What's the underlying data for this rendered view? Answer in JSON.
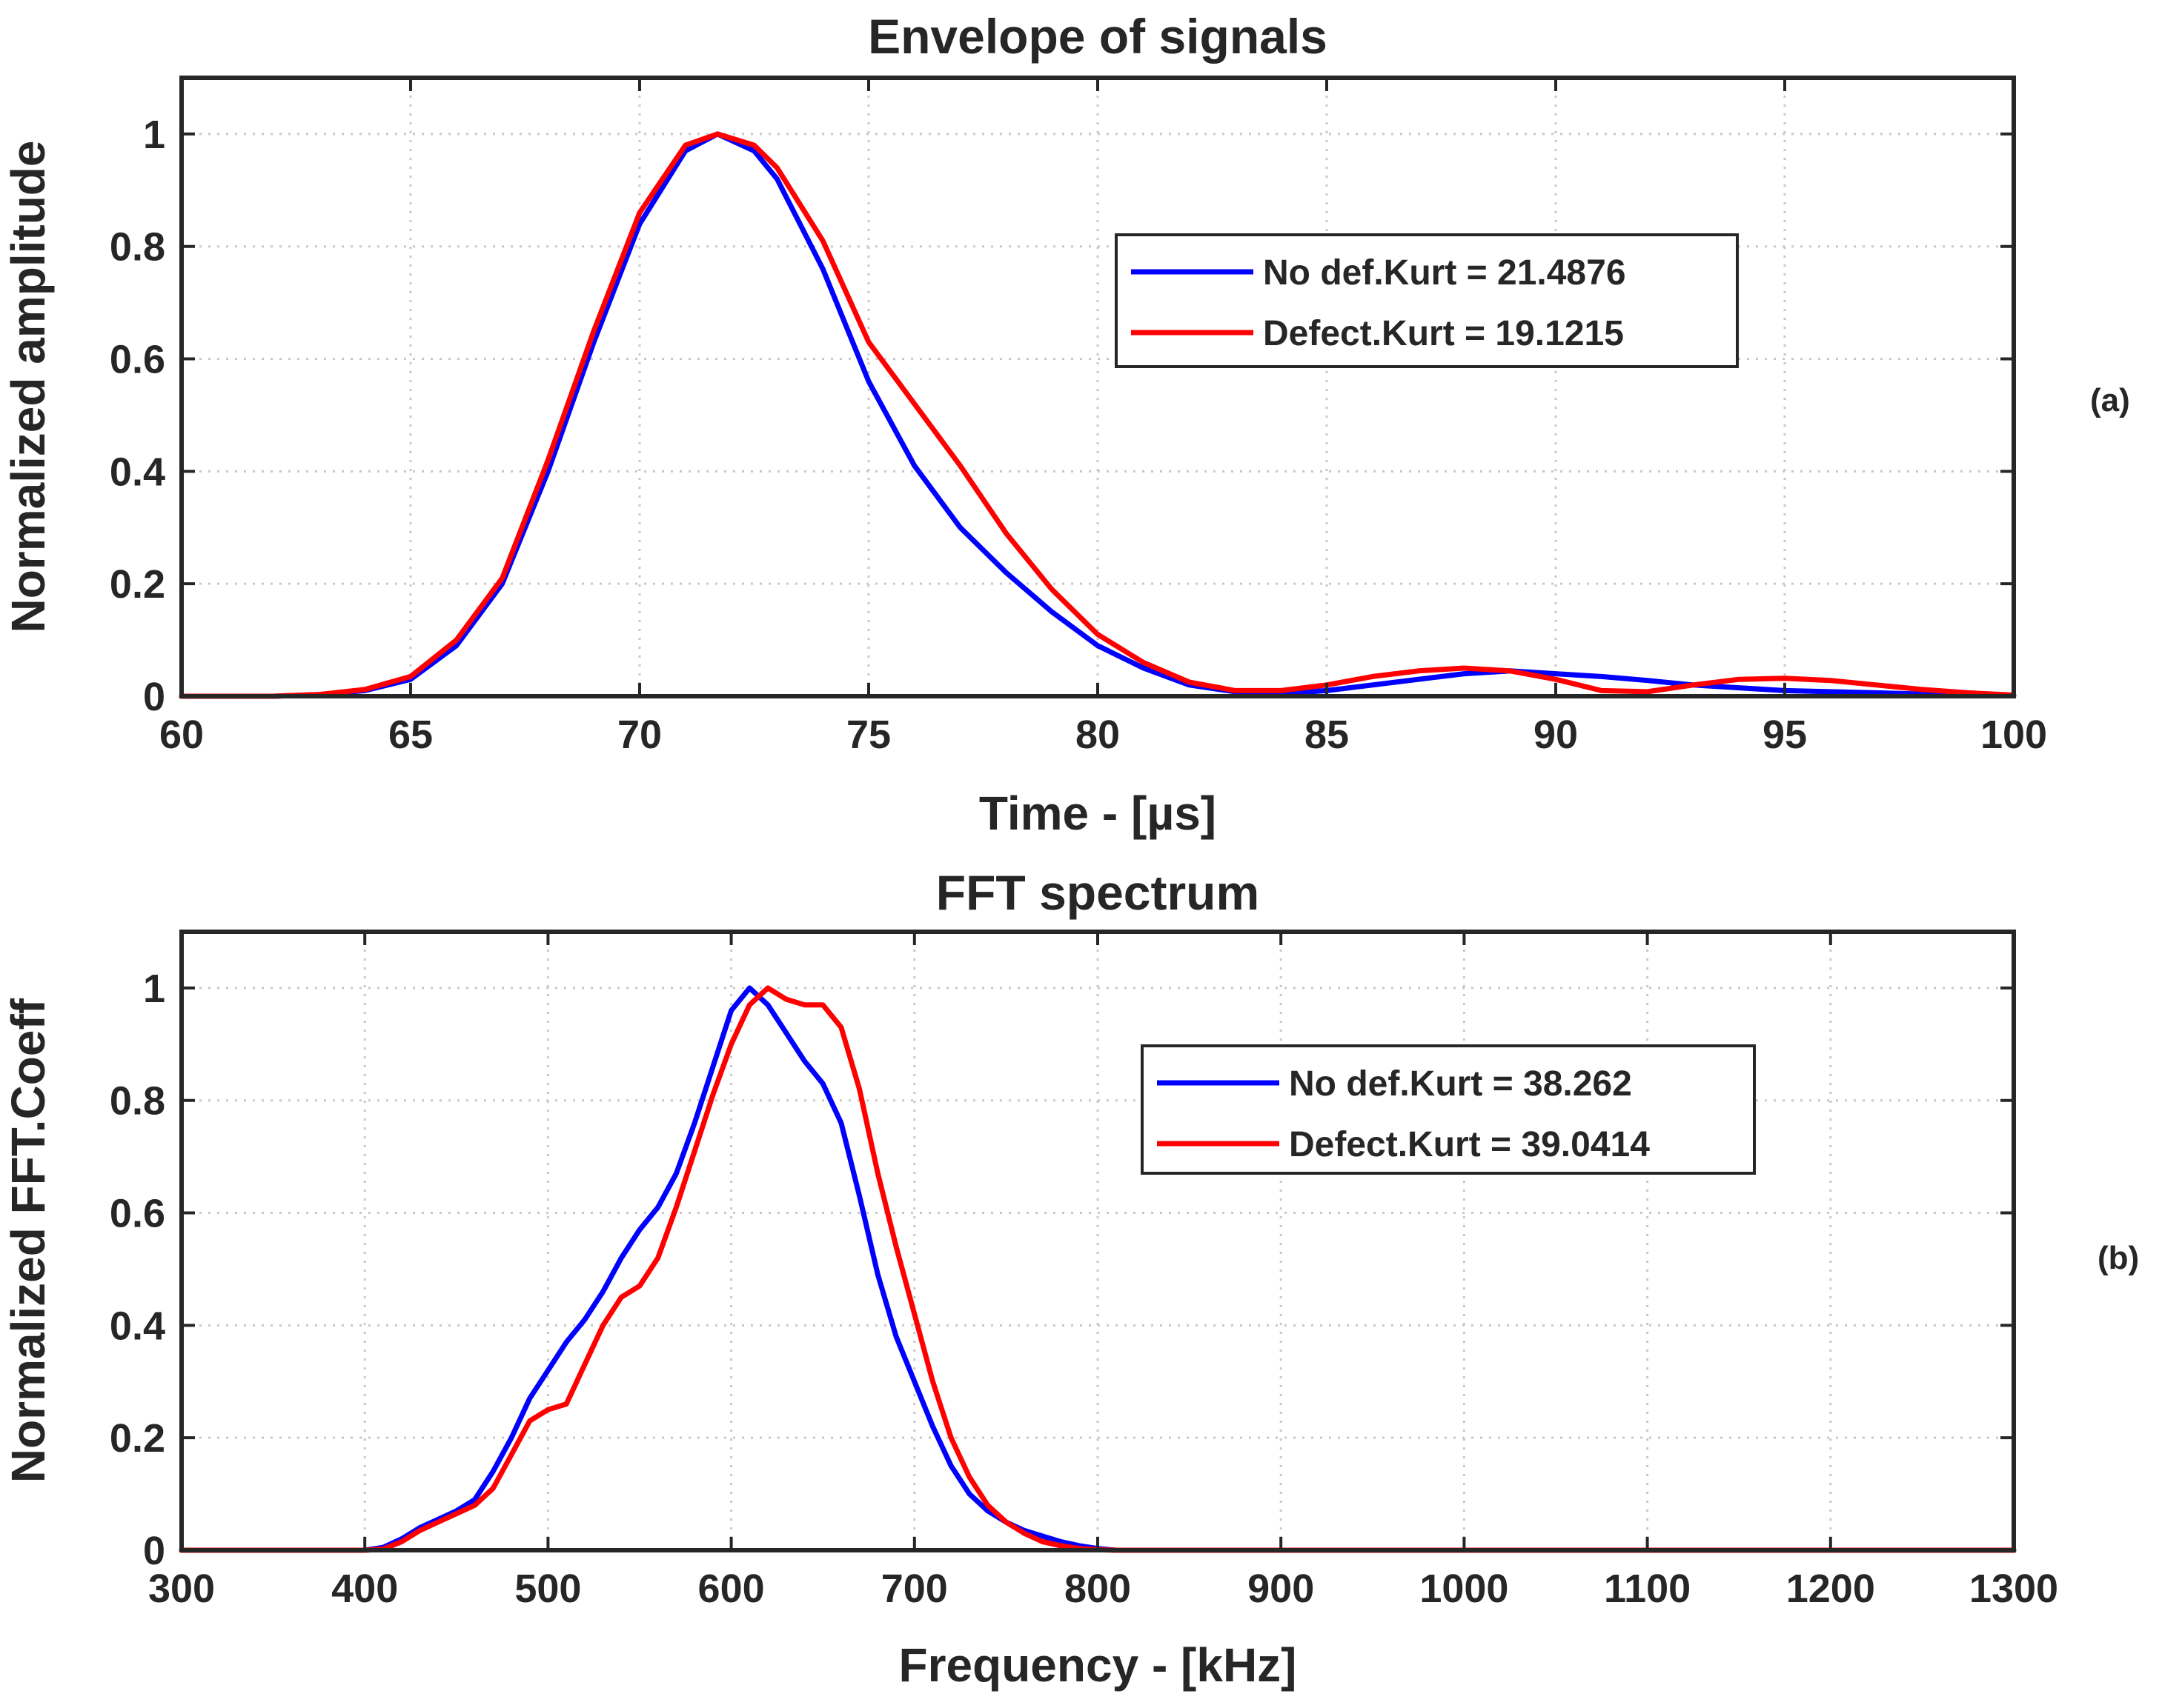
{
  "chart_data": [
    {
      "type": "line",
      "panel_tag": "(a)",
      "title": "Envelope of signals",
      "xlabel": "Time - [µs]",
      "ylabel": "Normalized amplitude",
      "xlim": [
        60,
        100
      ],
      "ylim": [
        0,
        1.1
      ],
      "xticks": [
        60,
        65,
        70,
        75,
        80,
        85,
        90,
        95,
        100
      ],
      "yticks": [
        0,
        0.2,
        0.4,
        0.6,
        0.8,
        1
      ],
      "ytick_labels": [
        "0",
        "0.2",
        "0.4",
        "0.6",
        "0.8",
        "1"
      ],
      "grid": true,
      "legend_position": "upper-right",
      "series": [
        {
          "name": "No def.Kurt = 21.4876",
          "color": "#0000ff",
          "x": [
            60,
            62,
            63,
            64,
            65,
            66,
            67,
            68,
            69,
            70,
            71,
            71.7,
            72.5,
            73,
            74,
            75,
            76,
            77,
            78,
            79,
            80,
            81,
            82,
            83,
            84,
            85,
            86,
            87,
            88,
            89,
            90,
            91,
            92,
            93,
            94,
            95,
            96,
            97,
            98,
            99,
            100
          ],
          "y": [
            0,
            0,
            0.003,
            0.01,
            0.03,
            0.09,
            0.2,
            0.4,
            0.63,
            0.84,
            0.97,
            1.0,
            0.97,
            0.92,
            0.76,
            0.56,
            0.41,
            0.3,
            0.22,
            0.15,
            0.09,
            0.05,
            0.02,
            0.008,
            0.005,
            0.01,
            0.02,
            0.03,
            0.04,
            0.045,
            0.04,
            0.035,
            0.028,
            0.02,
            0.015,
            0.01,
            0.008,
            0.006,
            0.004,
            0.002,
            0.001
          ]
        },
        {
          "name": "Defect.Kurt = 19.1215",
          "color": "#ff0000",
          "x": [
            60,
            62,
            63,
            64,
            65,
            66,
            67,
            68,
            69,
            70,
            71,
            71.7,
            72.5,
            73,
            74,
            75,
            76,
            77,
            78,
            79,
            80,
            81,
            82,
            83,
            84,
            85,
            86,
            87,
            88,
            89,
            90,
            91,
            92,
            93,
            94,
            95,
            96,
            97,
            98,
            99,
            100
          ],
          "y": [
            0,
            0,
            0.003,
            0.012,
            0.035,
            0.1,
            0.21,
            0.42,
            0.65,
            0.86,
            0.98,
            1.0,
            0.98,
            0.94,
            0.81,
            0.63,
            0.52,
            0.41,
            0.29,
            0.19,
            0.11,
            0.06,
            0.025,
            0.01,
            0.01,
            0.02,
            0.035,
            0.045,
            0.05,
            0.045,
            0.03,
            0.01,
            0.008,
            0.02,
            0.03,
            0.032,
            0.028,
            0.02,
            0.012,
            0.006,
            0.002
          ]
        }
      ]
    },
    {
      "type": "line",
      "panel_tag": "(b)",
      "title": "FFT spectrum",
      "xlabel": "Frequency - [kHz]",
      "ylabel": "Normalized FFT.Coeff",
      "xlim": [
        300,
        1300
      ],
      "ylim": [
        0,
        1.1
      ],
      "xticks": [
        300,
        400,
        500,
        600,
        700,
        800,
        900,
        1000,
        1100,
        1200,
        1300
      ],
      "yticks": [
        0,
        0.2,
        0.4,
        0.6,
        0.8,
        1
      ],
      "ytick_labels": [
        "0",
        "0.2",
        "0.4",
        "0.6",
        "0.8",
        "1"
      ],
      "grid": true,
      "legend_position": "upper-right",
      "series": [
        {
          "name": "No def.Kurt = 38.262",
          "color": "#0000ff",
          "x": [
            300,
            400,
            410,
            420,
            430,
            440,
            450,
            460,
            470,
            480,
            490,
            500,
            510,
            520,
            530,
            540,
            550,
            560,
            570,
            580,
            590,
            600,
            610,
            620,
            630,
            640,
            650,
            660,
            670,
            680,
            690,
            700,
            710,
            720,
            730,
            740,
            750,
            760,
            770,
            780,
            790,
            800,
            810,
            1300
          ],
          "y": [
            0,
            0,
            0.005,
            0.02,
            0.04,
            0.055,
            0.07,
            0.09,
            0.14,
            0.2,
            0.27,
            0.32,
            0.37,
            0.41,
            0.46,
            0.52,
            0.57,
            0.61,
            0.67,
            0.76,
            0.86,
            0.96,
            1.0,
            0.97,
            0.92,
            0.87,
            0.83,
            0.76,
            0.63,
            0.49,
            0.38,
            0.3,
            0.22,
            0.15,
            0.1,
            0.07,
            0.05,
            0.035,
            0.025,
            0.015,
            0.008,
            0.003,
            0,
            0
          ]
        },
        {
          "name": "Defect.Kurt = 39.0414",
          "color": "#ff0000",
          "x": [
            300,
            400,
            410,
            420,
            430,
            440,
            450,
            460,
            470,
            480,
            490,
            500,
            510,
            520,
            530,
            540,
            550,
            560,
            570,
            580,
            590,
            600,
            610,
            620,
            630,
            640,
            650,
            660,
            670,
            680,
            690,
            700,
            710,
            720,
            730,
            740,
            750,
            760,
            770,
            780,
            790,
            800,
            810,
            1300
          ],
          "y": [
            0,
            0,
            0.002,
            0.015,
            0.035,
            0.05,
            0.065,
            0.08,
            0.11,
            0.17,
            0.23,
            0.25,
            0.26,
            0.33,
            0.4,
            0.45,
            0.47,
            0.52,
            0.61,
            0.71,
            0.81,
            0.9,
            0.97,
            1.0,
            0.98,
            0.97,
            0.97,
            0.93,
            0.82,
            0.67,
            0.54,
            0.42,
            0.3,
            0.2,
            0.13,
            0.08,
            0.05,
            0.03,
            0.015,
            0.008,
            0.003,
            0.001,
            0,
            0
          ]
        }
      ]
    }
  ]
}
